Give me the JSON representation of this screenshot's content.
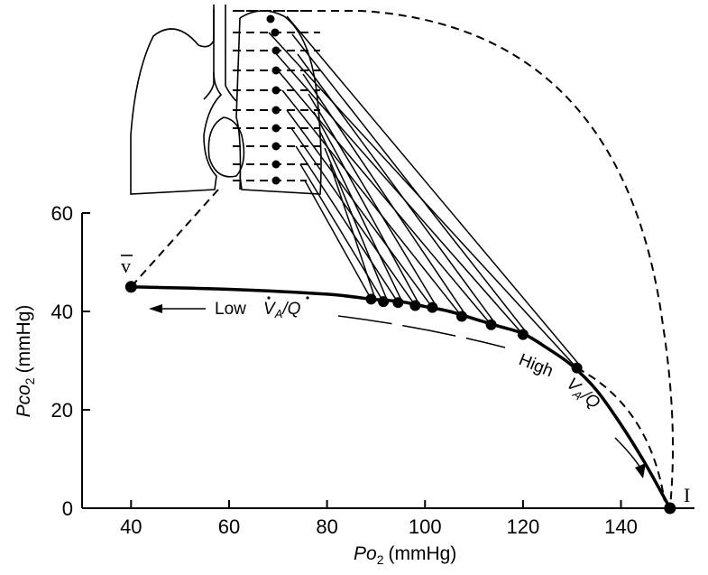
{
  "chart_data": {
    "type": "line",
    "x_unit": "Po2 (mmHg)",
    "y_unit": "Pco2 (mmHg)",
    "x_axis_symbol": "Po",
    "x_axis_subscript": "2",
    "x_axis_units": "(mmHg)",
    "y_axis_symbol": "Pco",
    "y_axis_subscript": "2",
    "y_axis_units": "(mmHg)",
    "xlim": [
      30,
      155
    ],
    "ylim": [
      0,
      60
    ],
    "x_ticks": [
      40,
      60,
      80,
      100,
      120,
      140
    ],
    "y_ticks": [
      0,
      20,
      40,
      60
    ],
    "curve": {
      "x": [
        40,
        60,
        80,
        89,
        95,
        100,
        105,
        110,
        115,
        120,
        125,
        130,
        135,
        140,
        145,
        150
      ],
      "y": [
        45,
        44.5,
        43.5,
        42.5,
        42,
        41,
        40,
        38.5,
        37,
        35.5,
        32.5,
        29,
        24,
        17,
        9,
        0
      ]
    },
    "lung_units": {
      "x": [
        89,
        91.5,
        94.5,
        98,
        101.5,
        107.5,
        113.5,
        120,
        131
      ],
      "y": [
        42.5,
        42,
        41.8,
        41.2,
        40.8,
        39,
        37.3,
        35.3,
        28.5
      ]
    },
    "endpoints": [
      {
        "label": "v",
        "x": 40,
        "y": 45
      },
      {
        "label": "I",
        "x": 150,
        "y": 0
      }
    ],
    "annotations": {
      "low_word": "Low",
      "high_word": "High",
      "va": "V",
      "va_sub": "A",
      "q": "Q",
      "slash": "/"
    }
  }
}
